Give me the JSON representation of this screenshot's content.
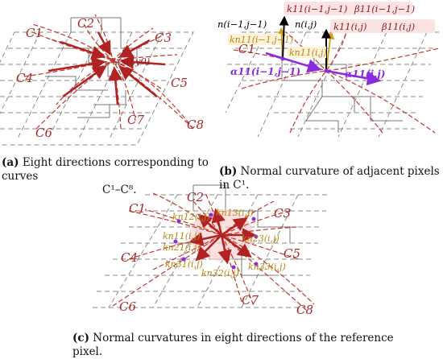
{
  "panel_a": {
    "curve_labels": [
      "C1",
      "C2",
      "C3",
      "C4",
      "C5",
      "C6",
      "C7",
      "C8"
    ],
    "center_label": "(x0,y0)",
    "caption_prefix": "(a)",
    "caption_text": "Eight directions corresponding to curves",
    "caption_text2": "C¹–C⁸."
  },
  "panel_b": {
    "curve_label": "C1",
    "normal_prev": "n(i−1,j−1)",
    "normal_cur": "n(i,j)",
    "k_top_prev": "k11(i−1,j−1)",
    "beta_prev": "β11(i−1,j−1)",
    "k_top_cur": "k11(i,j)",
    "beta_cur": "β11(i,j)",
    "kn_prev": "kn11(i−1,j−1)",
    "kn_cur": "kn11(i,j)",
    "alpha_prev": "α11(i−1,j−1)",
    "alpha_cur": "α11(i,j)",
    "caption_prefix": "(b)",
    "caption_text": "Normal curvature of adjacent pixels in C¹."
  },
  "panel_c": {
    "curve_labels": [
      "C1",
      "C2",
      "C3",
      "C4",
      "C5",
      "C6",
      "C7",
      "C8"
    ],
    "kn_labels": [
      "kn12(i,j)",
      "kn13(i,j)",
      "kn11(i,j)",
      "kn21(i,j)",
      "kn23(i,j)",
      "kn31(i,j)",
      "kn32(i,j)",
      "kn33(i,j)"
    ],
    "caption_prefix": "(c)",
    "caption_text": "Normal curvatures in eight directions of the reference pixel."
  },
  "colors": {
    "curve": "#c0392b",
    "arrow": "#b22222",
    "label_red": "#a52a2a",
    "orange": "#d4a017",
    "purple": "#8a2be2",
    "grid": "#888888"
  }
}
